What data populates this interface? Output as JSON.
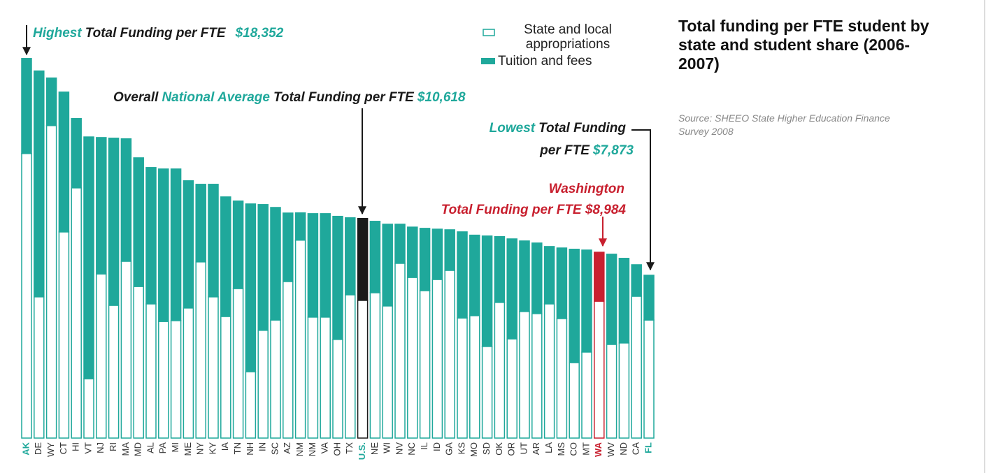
{
  "chart_data": {
    "type": "stacked-bar",
    "title": "Total funding per FTE student by state and student share (2006-2007)",
    "source": "Source:  SHEEO State Higher Education Finance Survey 2008",
    "categories": [
      "AK",
      "DE",
      "WY",
      "CT",
      "HI",
      "VT",
      "NJ",
      "RI",
      "MA",
      "MD",
      "AL",
      "PA",
      "MI",
      "ME",
      "NY",
      "KY",
      "IA",
      "TN",
      "NH",
      "IN",
      "SC",
      "AZ",
      "NM",
      "NM",
      "VA",
      "OH",
      "TX",
      "U.S.",
      "NE",
      "WI",
      "NV",
      "NC",
      "IL",
      "ID",
      "GA",
      "KS",
      "MO",
      "SD",
      "OK",
      "OR",
      "UT",
      "AR",
      "LA",
      "MS",
      "CO",
      "MT",
      "WA",
      "WV",
      "ND",
      "CA",
      "FL"
    ],
    "series": [
      {
        "name": "State and local appropriations",
        "color": "#ffffff",
        "values": [
          13760,
          6830,
          15110,
          9970,
          12100,
          2870,
          7940,
          6420,
          8550,
          7330,
          6490,
          5640,
          5680,
          6290,
          8520,
          6830,
          5880,
          7230,
          3210,
          5210,
          5710,
          7570,
          9570,
          5850,
          5850,
          4770,
          6930,
          6660,
          7030,
          6390,
          8450,
          7770,
          7130,
          7670,
          8110,
          5810,
          5920,
          4430,
          6560,
          4800,
          6120,
          6020,
          6490,
          5780,
          3650,
          4160,
          6620,
          4530,
          4600,
          6860,
          5710
        ]
      },
      {
        "name": "Tuition and fees",
        "color": "#1fa89b",
        "values": [
          4592,
          10920,
          2300,
          6760,
          3350,
          11690,
          6590,
          8080,
          5920,
          6220,
          6590,
          7370,
          7330,
          6150,
          3750,
          5440,
          5780,
          4230,
          8110,
          6080,
          5440,
          3310,
          1320,
          5000,
          5000,
          5950,
          3720,
          3958,
          3450,
          3950,
          1890,
          2430,
          3010,
          2430,
          1960,
          4160,
          3890,
          5340,
          3180,
          4830,
          3410,
          3410,
          2770,
          3410,
          5480,
          4930,
          2364,
          4360,
          4090,
          1520,
          2163
        ]
      }
    ],
    "outline_color": "#1fa89b",
    "highlight_colors": {
      "27": "#1a1a1a",
      "46": "#c8202f"
    },
    "label_colors": {
      "0": "#1fa89b",
      "27": "#1fa89b",
      "46": "#c8202f",
      "50": "#1fa89b"
    },
    "ylim": [
      0,
      20000
    ],
    "annotations": [
      [
        [
          {
            "text": "Highest",
            "color": "#1fa89b"
          },
          {
            "text": "Total Funding per FTE",
            "color": "#1a1a1a"
          },
          {
            "text": "$18,352",
            "color": "#1fa89b"
          }
        ]
      ],
      [
        [
          {
            "text": "Overall",
            "color": "#1a1a1a"
          },
          {
            "text": "National Average",
            "color": "#1fa89b"
          },
          {
            "text": "Total Funding per FTE",
            "color": "#1a1a1a"
          },
          {
            "text": "$10,618",
            "color": "#1fa89b"
          }
        ]
      ],
      [
        [
          {
            "text": "Lowest",
            "color": "#1fa89b"
          },
          {
            "text": "Total Funding",
            "color": "#1a1a1a"
          }
        ],
        [
          {
            "text": "per FTE",
            "color": "#1a1a1a"
          },
          {
            "text": "$7,873",
            "color": "#1fa89b"
          }
        ]
      ],
      [
        [
          {
            "text": "Washington",
            "color": "#c8202f"
          }
        ],
        [
          {
            "text": "Total Funding per FTE $8,984",
            "color": "#c8202f"
          }
        ]
      ]
    ]
  }
}
